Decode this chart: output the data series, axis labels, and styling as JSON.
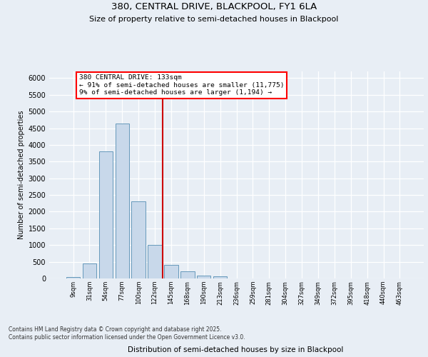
{
  "title1": "380, CENTRAL DRIVE, BLACKPOOL, FY1 6LA",
  "title2": "Size of property relative to semi-detached houses in Blackpool",
  "xlabel": "Distribution of semi-detached houses by size in Blackpool",
  "ylabel": "Number of semi-detached properties",
  "categories": [
    "9sqm",
    "31sqm",
    "54sqm",
    "77sqm",
    "100sqm",
    "122sqm",
    "145sqm",
    "168sqm",
    "190sqm",
    "213sqm",
    "236sqm",
    "259sqm",
    "281sqm",
    "304sqm",
    "327sqm",
    "349sqm",
    "372sqm",
    "395sqm",
    "418sqm",
    "440sqm",
    "463sqm"
  ],
  "values": [
    50,
    450,
    3800,
    4650,
    2300,
    1000,
    400,
    220,
    90,
    60,
    0,
    0,
    0,
    0,
    0,
    0,
    0,
    0,
    0,
    0,
    0
  ],
  "bar_color": "#c8d8ea",
  "bar_edge_color": "#6699bb",
  "vline_color": "#cc0000",
  "annotation_title": "380 CENTRAL DRIVE: 133sqm",
  "annotation_line1": "← 91% of semi-detached houses are smaller (11,775)",
  "annotation_line2": "9% of semi-detached houses are larger (1,194) →",
  "ylim_max": 6200,
  "yticks": [
    0,
    500,
    1000,
    1500,
    2000,
    2500,
    3000,
    3500,
    4000,
    4500,
    5000,
    5500,
    6000
  ],
  "footer1": "Contains HM Land Registry data © Crown copyright and database right 2025.",
  "footer2": "Contains public sector information licensed under the Open Government Licence v3.0.",
  "bg_color": "#e8eef5",
  "plot_bg_color": "#e8eef5"
}
